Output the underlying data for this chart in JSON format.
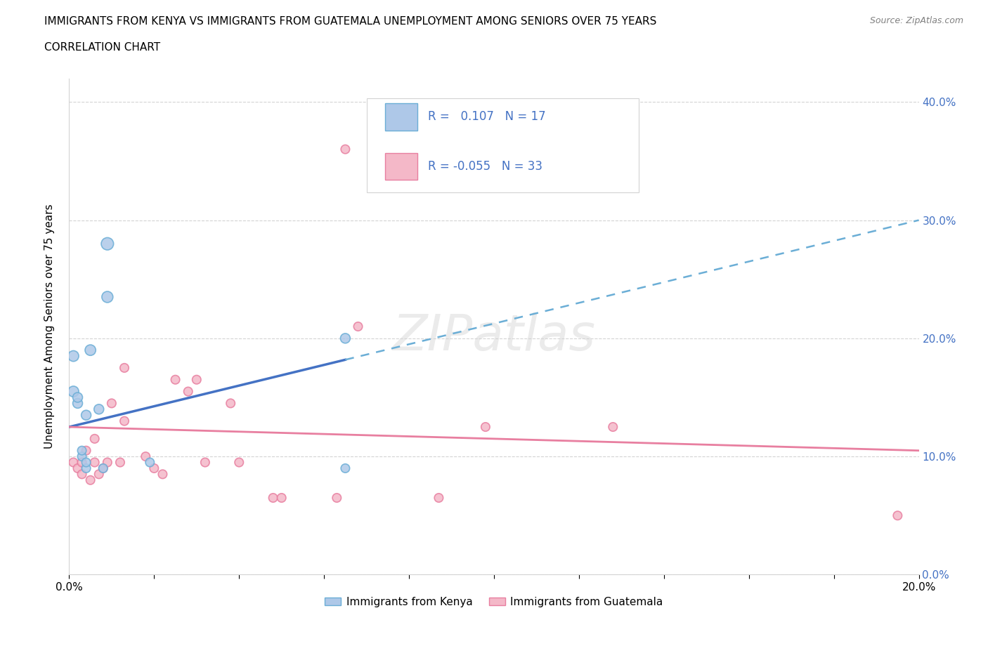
{
  "title_line1": "IMMIGRANTS FROM KENYA VS IMMIGRANTS FROM GUATEMALA UNEMPLOYMENT AMONG SENIORS OVER 75 YEARS",
  "title_line2": "CORRELATION CHART",
  "source": "Source: ZipAtlas.com",
  "ylabel": "Unemployment Among Seniors over 75 years",
  "xlim": [
    0.0,
    0.2
  ],
  "ylim": [
    0.0,
    0.42
  ],
  "xticks": [
    0.0,
    0.02,
    0.04,
    0.06,
    0.08,
    0.1,
    0.12,
    0.14,
    0.16,
    0.18,
    0.2
  ],
  "yticks": [
    0.0,
    0.1,
    0.2,
    0.3,
    0.4
  ],
  "kenya_color": "#aec8e8",
  "kenya_edge": "#6baed6",
  "guatemala_color": "#f4b8c8",
  "guatemala_edge": "#e87fa0",
  "kenya_R": 0.107,
  "kenya_N": 17,
  "guatemala_R": -0.055,
  "guatemala_N": 33,
  "kenya_line_color": "#4472c4",
  "kenya_line_dash_color": "#6baed6",
  "guatemala_line_color": "#e87fa0",
  "legend_text_color": "#4472c4",
  "kenya_points_x": [
    0.001,
    0.001,
    0.002,
    0.002,
    0.003,
    0.003,
    0.004,
    0.004,
    0.004,
    0.005,
    0.007,
    0.008,
    0.009,
    0.009,
    0.019,
    0.065,
    0.065
  ],
  "kenya_points_y": [
    0.155,
    0.185,
    0.145,
    0.15,
    0.1,
    0.105,
    0.09,
    0.095,
    0.135,
    0.19,
    0.14,
    0.09,
    0.28,
    0.235,
    0.095,
    0.2,
    0.09
  ],
  "kenya_sizes": [
    120,
    120,
    100,
    100,
    80,
    80,
    80,
    80,
    100,
    120,
    100,
    80,
    160,
    130,
    80,
    100,
    80
  ],
  "guatemala_points_x": [
    0.001,
    0.002,
    0.003,
    0.003,
    0.004,
    0.005,
    0.006,
    0.006,
    0.007,
    0.008,
    0.009,
    0.01,
    0.012,
    0.013,
    0.013,
    0.018,
    0.02,
    0.022,
    0.025,
    0.028,
    0.03,
    0.032,
    0.038,
    0.04,
    0.048,
    0.05,
    0.063,
    0.068,
    0.087,
    0.098,
    0.128,
    0.065,
    0.195
  ],
  "guatemala_points_y": [
    0.095,
    0.09,
    0.095,
    0.085,
    0.105,
    0.08,
    0.095,
    0.115,
    0.085,
    0.09,
    0.095,
    0.145,
    0.095,
    0.175,
    0.13,
    0.1,
    0.09,
    0.085,
    0.165,
    0.155,
    0.165,
    0.095,
    0.145,
    0.095,
    0.065,
    0.065,
    0.065,
    0.21,
    0.065,
    0.125,
    0.125,
    0.36,
    0.05
  ],
  "guatemala_sizes": [
    80,
    80,
    80,
    80,
    80,
    80,
    80,
    80,
    80,
    80,
    80,
    80,
    80,
    80,
    80,
    80,
    80,
    80,
    80,
    80,
    80,
    80,
    80,
    80,
    80,
    80,
    80,
    80,
    80,
    80,
    80,
    80,
    80
  ],
  "watermark": "ZIPatlas"
}
